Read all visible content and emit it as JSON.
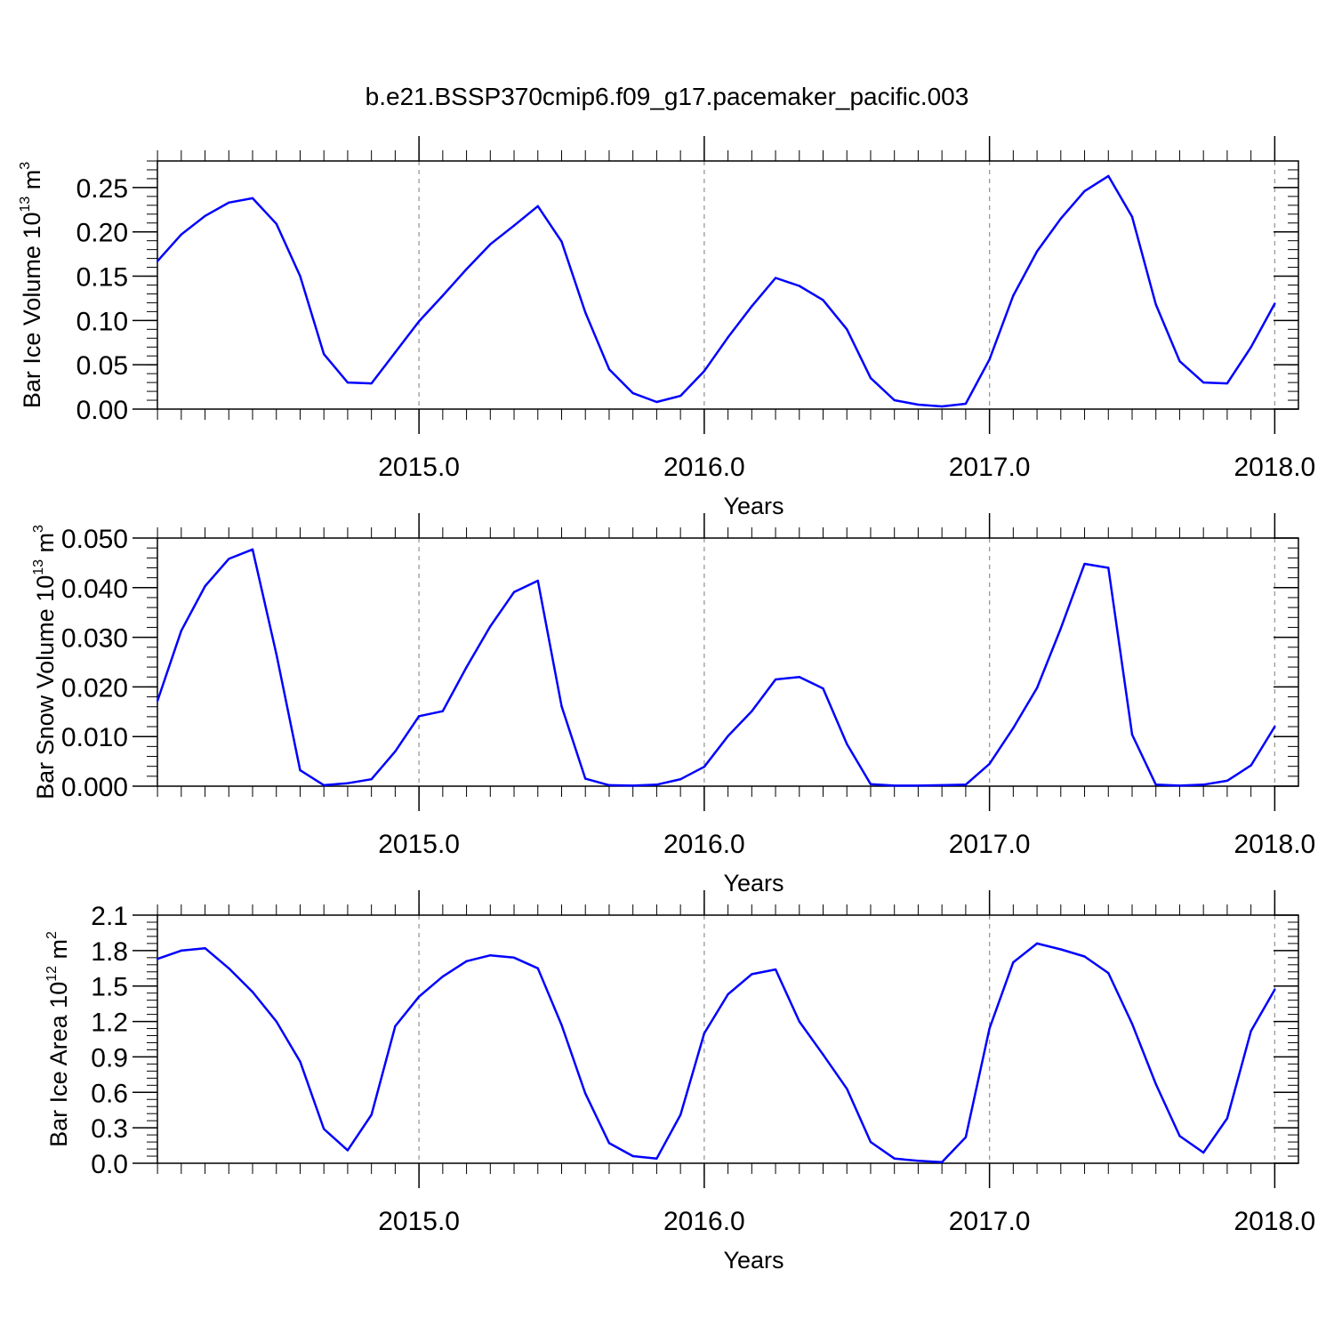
{
  "title": "b.e21.BSSP370cmip6.f09_g17.pacemaker_pacific.003",
  "chart_data": [
    {
      "type": "line",
      "title": "",
      "xlabel": "Years",
      "ylabel": {
        "text": "Bar Ice Volume 10",
        "exponent": "13",
        "unit": "m",
        "unit_exponent": "3"
      },
      "xlim": [
        2014.083,
        2018.083
      ],
      "ylim": [
        0,
        0.28
      ],
      "xticks": [
        2015.0,
        2016.0,
        2017.0,
        2018.0
      ],
      "xtick_labels": [
        "2015.0",
        "2016.0",
        "2017.0",
        "2018.0"
      ],
      "yticks": [
        0,
        0.05,
        0.1,
        0.15,
        0.2,
        0.25
      ],
      "ytick_labels": [
        "0.00",
        "0.05",
        "0.10",
        "0.15",
        "0.20",
        "0.25"
      ],
      "color": "#0000ff",
      "grid": "dashed vertical at each year",
      "x": [
        2014.0833,
        2014.1667,
        2014.25,
        2014.3333,
        2014.4167,
        2014.5,
        2014.5833,
        2014.6667,
        2014.75,
        2014.8333,
        2014.9167,
        2015.0,
        2015.0833,
        2015.1667,
        2015.25,
        2015.3333,
        2015.4167,
        2015.5,
        2015.5833,
        2015.6667,
        2015.75,
        2015.8333,
        2015.9167,
        2016.0,
        2016.0833,
        2016.1667,
        2016.25,
        2016.3333,
        2016.4167,
        2016.5,
        2016.5833,
        2016.6667,
        2016.75,
        2016.8333,
        2016.9167,
        2017.0,
        2017.0833,
        2017.1667,
        2017.25,
        2017.3333,
        2017.4167,
        2017.5,
        2017.5833,
        2017.6667,
        2017.75,
        2017.8333,
        2017.9167,
        2018.0
      ],
      "y": [
        0.167,
        0.197,
        0.218,
        0.233,
        0.238,
        0.209,
        0.15,
        0.062,
        0.03,
        0.029,
        0.064,
        0.099,
        0.128,
        0.158,
        0.186,
        0.207,
        0.229,
        0.189,
        0.109,
        0.045,
        0.018,
        0.008,
        0.015,
        0.043,
        0.081,
        0.116,
        0.148,
        0.139,
        0.123,
        0.09,
        0.035,
        0.01,
        0.005,
        0.003,
        0.006,
        0.056,
        0.128,
        0.178,
        0.215,
        0.246,
        0.263,
        0.217,
        0.118,
        0.054,
        0.03,
        0.029,
        0.07,
        0.119
      ]
    },
    {
      "type": "line",
      "title": "",
      "xlabel": "Years",
      "ylabel": {
        "text": "Bar Snow Volume 10",
        "exponent": "13",
        "unit": "m",
        "unit_exponent": "3"
      },
      "xlim": [
        2014.083,
        2018.083
      ],
      "ylim": [
        0,
        0.05
      ],
      "xticks": [
        2015.0,
        2016.0,
        2017.0,
        2018.0
      ],
      "xtick_labels": [
        "2015.0",
        "2016.0",
        "2017.0",
        "2018.0"
      ],
      "yticks": [
        0,
        0.01,
        0.02,
        0.03,
        0.04,
        0.05
      ],
      "ytick_labels": [
        "0.000",
        "0.010",
        "0.020",
        "0.030",
        "0.040",
        "0.050"
      ],
      "color": "#0000ff",
      "grid": "dashed vertical at each year",
      "x": [
        2014.0833,
        2014.1667,
        2014.25,
        2014.3333,
        2014.4167,
        2014.5,
        2014.5833,
        2014.6667,
        2014.75,
        2014.8333,
        2014.9167,
        2015.0,
        2015.0833,
        2015.1667,
        2015.25,
        2015.3333,
        2015.4167,
        2015.5,
        2015.5833,
        2015.6667,
        2015.75,
        2015.8333,
        2015.9167,
        2016.0,
        2016.0833,
        2016.1667,
        2016.25,
        2016.3333,
        2016.4167,
        2016.5,
        2016.5833,
        2016.6667,
        2016.75,
        2016.8333,
        2016.9167,
        2017.0,
        2017.0833,
        2017.1667,
        2017.25,
        2017.3333,
        2017.4167,
        2017.5,
        2017.5833,
        2017.6667,
        2017.75,
        2017.8333,
        2017.9167,
        2018.0
      ],
      "y": [
        0.0172,
        0.0313,
        0.0403,
        0.0458,
        0.0477,
        0.0266,
        0.0032,
        0.0002,
        0.0006,
        0.0014,
        0.007,
        0.0141,
        0.0151,
        0.024,
        0.0322,
        0.0391,
        0.0414,
        0.0161,
        0.0015,
        0.0002,
        0.0001,
        0.0003,
        0.0014,
        0.0039,
        0.0101,
        0.0151,
        0.0215,
        0.022,
        0.0197,
        0.0085,
        0.0004,
        0.0001,
        0.0001,
        0.0002,
        0.0003,
        0.0045,
        0.0117,
        0.0198,
        0.0318,
        0.0448,
        0.044,
        0.0104,
        0.0003,
        0.0001,
        0.0003,
        0.0011,
        0.0042,
        0.012
      ]
    },
    {
      "type": "line",
      "title": "",
      "xlabel": "Years",
      "ylabel": {
        "text": "Bar Ice Area 10",
        "exponent": "12",
        "unit": "m",
        "unit_exponent": "2"
      },
      "xlim": [
        2014.083,
        2018.083
      ],
      "ylim": [
        0,
        2.1
      ],
      "xticks": [
        2015.0,
        2016.0,
        2017.0,
        2018.0
      ],
      "xtick_labels": [
        "2015.0",
        "2016.0",
        "2017.0",
        "2018.0"
      ],
      "yticks": [
        0,
        0.3,
        0.6,
        0.9,
        1.2,
        1.5,
        1.8,
        2.1
      ],
      "ytick_labels": [
        "0.0",
        "0.3",
        "0.6",
        "0.9",
        "1.2",
        "1.5",
        "1.8",
        "2.1"
      ],
      "color": "#0000ff",
      "grid": "dashed vertical at each year",
      "x": [
        2014.0833,
        2014.1667,
        2014.25,
        2014.3333,
        2014.4167,
        2014.5,
        2014.5833,
        2014.6667,
        2014.75,
        2014.8333,
        2014.9167,
        2015.0,
        2015.0833,
        2015.1667,
        2015.25,
        2015.3333,
        2015.4167,
        2015.5,
        2015.5833,
        2015.6667,
        2015.75,
        2015.8333,
        2015.9167,
        2016.0,
        2016.0833,
        2016.1667,
        2016.25,
        2016.3333,
        2016.4167,
        2016.5,
        2016.5833,
        2016.6667,
        2016.75,
        2016.8333,
        2016.9167,
        2017.0,
        2017.0833,
        2017.1667,
        2017.25,
        2017.3333,
        2017.4167,
        2017.5,
        2017.5833,
        2017.6667,
        2017.75,
        2017.8333,
        2017.9167,
        2018.0
      ],
      "y": [
        1.73,
        1.8,
        1.82,
        1.65,
        1.45,
        1.2,
        0.86,
        0.29,
        0.11,
        0.41,
        1.16,
        1.41,
        1.58,
        1.71,
        1.76,
        1.74,
        1.65,
        1.17,
        0.59,
        0.17,
        0.06,
        0.04,
        0.41,
        1.1,
        1.43,
        1.6,
        1.64,
        1.2,
        0.92,
        0.63,
        0.18,
        0.04,
        0.02,
        0.01,
        0.22,
        1.14,
        1.7,
        1.86,
        1.81,
        1.75,
        1.61,
        1.18,
        0.67,
        0.23,
        0.09,
        0.38,
        1.12,
        1.47
      ]
    }
  ]
}
